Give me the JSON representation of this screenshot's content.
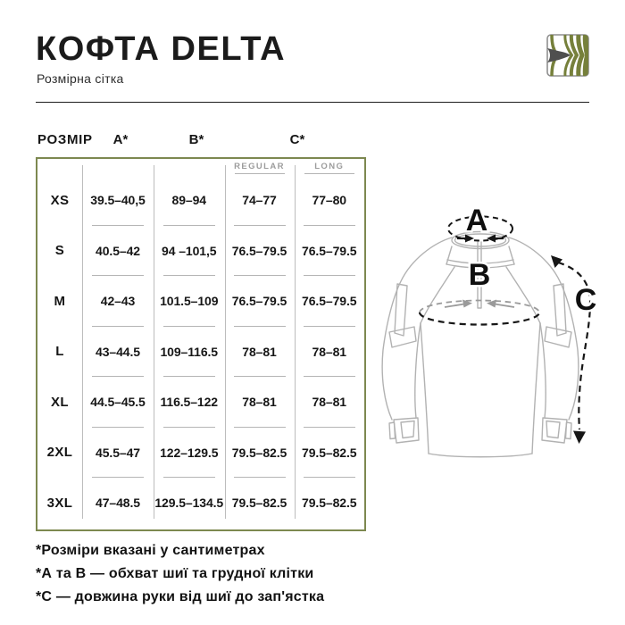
{
  "header": {
    "title": "КОФТА DELTA",
    "subtitle": "Розмірна сітка"
  },
  "logo": {
    "name": "brand-logo",
    "olive": "#76803b",
    "dark": "#4f4f4f",
    "border": "#8f8f8f"
  },
  "size_chart": {
    "size_label": "РОЗМІР",
    "col_a": "A*",
    "col_b": "B*",
    "col_c": "C*",
    "c_variants": [
      "REGULAR",
      "LONG"
    ],
    "border_color": "#7d8850",
    "rows": [
      {
        "size": "XS",
        "a": "39.5–40,5",
        "b": "89–94",
        "c_regular": "74–77",
        "c_long": "77–80"
      },
      {
        "size": "S",
        "a": "40.5–42",
        "b": "94 –101,5",
        "c_regular": "76.5–79.5",
        "c_long": "76.5–79.5"
      },
      {
        "size": "M",
        "a": "42–43",
        "b": "101.5–109",
        "c_regular": "76.5–79.5",
        "c_long": "76.5–79.5"
      },
      {
        "size": "L",
        "a": "43–44.5",
        "b": "109–116.5",
        "c_regular": "78–81",
        "c_long": "78–81"
      },
      {
        "size": "XL",
        "a": "44.5–45.5",
        "b": "116.5–122",
        "c_regular": "78–81",
        "c_long": "78–81"
      },
      {
        "size": "2XL",
        "a": "45.5–47",
        "b": "122–129.5",
        "c_regular": "79.5–82.5",
        "c_long": "79.5–82.5"
      },
      {
        "size": "3XL",
        "a": "47–48.5",
        "b": "129.5–134.5",
        "c_regular": "79.5–82.5",
        "c_long": "79.5–82.5"
      }
    ]
  },
  "diagram": {
    "labels": {
      "a": "A",
      "b": "B",
      "c": "C"
    },
    "outline_color": "#b2b2b2",
    "dash_color": "#161616",
    "gray_dash_color": "#9a9a9a"
  },
  "footnotes": [
    "*Розміри вказані у сантиметрах",
    "*А та В — обхват шиї та грудної клітки",
    "*С — довжина руки від шиї до зап'ястка"
  ]
}
